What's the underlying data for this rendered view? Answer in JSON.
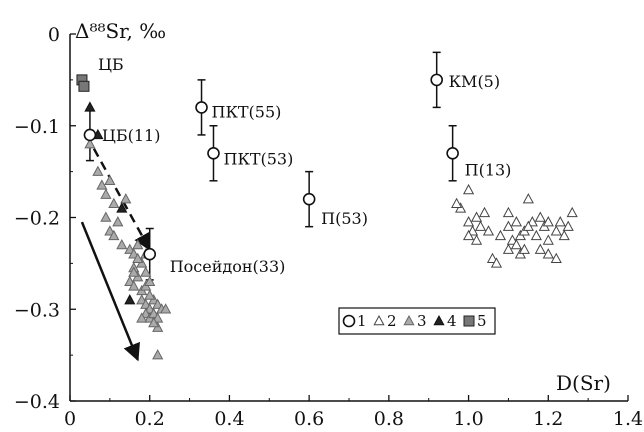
{
  "chart_data": {
    "type": "scatter",
    "ylabel": "Δ⁸⁸Sr, ‰",
    "xlabel": "D(Sr)",
    "xlim": [
      0,
      1.4
    ],
    "ylim": [
      -0.4,
      0
    ],
    "xticks": [
      0,
      0.2,
      0.4,
      0.6,
      0.8,
      1.0,
      1.2,
      1.4
    ],
    "xtick_labels": [
      "0",
      "0.2",
      "0.4",
      "0.6",
      "0.8",
      "1.0",
      "1.2",
      "1.4"
    ],
    "yticks": [
      0,
      -0.1,
      -0.2,
      -0.3,
      -0.4
    ],
    "ytick_labels": [
      "0",
      "−0.1",
      "−0.2",
      "−0.3",
      "−0.4"
    ],
    "grid": false,
    "legend": {
      "placement": "lower-center",
      "entries": [
        "1",
        "2",
        "3",
        "4",
        "5"
      ]
    },
    "series": [
      {
        "name": "1",
        "marker": "open-circle",
        "points": [
          {
            "x": 0.05,
            "y": -0.11,
            "err": 0.028,
            "label": "ЦБ(11)"
          },
          {
            "x": 0.2,
            "y": -0.24,
            "err": 0.028,
            "label": "Посейдон(33)"
          },
          {
            "x": 0.33,
            "y": -0.08,
            "err": 0.03,
            "label": "ПКТ(55)"
          },
          {
            "x": 0.36,
            "y": -0.13,
            "err": 0.03,
            "label": "ПКТ(53)"
          },
          {
            "x": 0.6,
            "y": -0.18,
            "err": 0.03,
            "label": "П(53)"
          },
          {
            "x": 0.92,
            "y": -0.05,
            "err": 0.03,
            "label": "КМ(5)"
          },
          {
            "x": 0.96,
            "y": -0.13,
            "err": 0.03,
            "label": "П(13)"
          }
        ]
      },
      {
        "name": "2",
        "marker": "open-triangle",
        "points": [
          [
            1.0,
            -0.17
          ],
          [
            0.98,
            -0.19
          ],
          [
            0.97,
            -0.185
          ],
          [
            1.02,
            -0.2
          ],
          [
            1.04,
            -0.195
          ],
          [
            1.0,
            -0.205
          ],
          [
            1.03,
            -0.21
          ],
          [
            1.01,
            -0.215
          ],
          [
            1.02,
            -0.225
          ],
          [
            1.05,
            -0.215
          ],
          [
            1.0,
            -0.22
          ],
          [
            1.06,
            -0.245
          ],
          [
            1.07,
            -0.25
          ],
          [
            1.1,
            -0.195
          ],
          [
            1.12,
            -0.205
          ],
          [
            1.1,
            -0.21
          ],
          [
            1.13,
            -0.22
          ],
          [
            1.11,
            -0.225
          ],
          [
            1.14,
            -0.215
          ],
          [
            1.16,
            -0.205
          ],
          [
            1.18,
            -0.2
          ],
          [
            1.1,
            -0.235
          ],
          [
            1.13,
            -0.24
          ],
          [
            1.15,
            -0.21
          ],
          [
            1.15,
            -0.18
          ],
          [
            1.17,
            -0.22
          ],
          [
            1.19,
            -0.21
          ],
          [
            1.2,
            -0.205
          ],
          [
            1.2,
            -0.225
          ],
          [
            1.22,
            -0.215
          ],
          [
            1.24,
            -0.22
          ],
          [
            1.2,
            -0.24
          ],
          [
            1.22,
            -0.245
          ],
          [
            1.26,
            -0.195
          ],
          [
            1.25,
            -0.21
          ],
          [
            1.12,
            -0.23
          ],
          [
            1.18,
            -0.235
          ],
          [
            1.08,
            -0.22
          ],
          [
            1.14,
            -0.235
          ],
          [
            1.23,
            -0.205
          ]
        ]
      },
      {
        "name": "3",
        "marker": "gray-triangle",
        "points": [
          [
            0.05,
            -0.12
          ],
          [
            0.07,
            -0.15
          ],
          [
            0.08,
            -0.165
          ],
          [
            0.09,
            -0.175
          ],
          [
            0.1,
            -0.16
          ],
          [
            0.11,
            -0.185
          ],
          [
            0.09,
            -0.2
          ],
          [
            0.1,
            -0.215
          ],
          [
            0.12,
            -0.205
          ],
          [
            0.11,
            -0.22
          ],
          [
            0.13,
            -0.23
          ],
          [
            0.14,
            -0.18
          ],
          [
            0.15,
            -0.235
          ],
          [
            0.16,
            -0.24
          ],
          [
            0.17,
            -0.23
          ],
          [
            0.16,
            -0.255
          ],
          [
            0.18,
            -0.25
          ],
          [
            0.17,
            -0.265
          ],
          [
            0.19,
            -0.26
          ],
          [
            0.15,
            -0.27
          ],
          [
            0.16,
            -0.275
          ],
          [
            0.18,
            -0.28
          ],
          [
            0.19,
            -0.275
          ],
          [
            0.2,
            -0.27
          ],
          [
            0.18,
            -0.29
          ],
          [
            0.19,
            -0.295
          ],
          [
            0.2,
            -0.3
          ],
          [
            0.21,
            -0.29
          ],
          [
            0.22,
            -0.295
          ],
          [
            0.23,
            -0.3
          ],
          [
            0.19,
            -0.305
          ],
          [
            0.2,
            -0.31
          ],
          [
            0.21,
            -0.305
          ],
          [
            0.22,
            -0.31
          ],
          [
            0.24,
            -0.3
          ],
          [
            0.17,
            -0.245
          ],
          [
            0.2,
            -0.285
          ],
          [
            0.22,
            -0.32
          ],
          [
            0.21,
            -0.315
          ],
          [
            0.18,
            -0.31
          ],
          [
            0.16,
            -0.26
          ],
          [
            0.19,
            -0.24
          ],
          [
            0.22,
            -0.35
          ]
        ]
      },
      {
        "name": "4",
        "marker": "black-triangle",
        "points": [
          [
            0.05,
            -0.08
          ],
          [
            0.07,
            -0.11
          ],
          [
            0.13,
            -0.19
          ],
          [
            0.15,
            -0.29
          ]
        ]
      },
      {
        "name": "5",
        "marker": "gray-square",
        "points": [
          {
            "x": 0.03,
            "y": -0.05,
            "label": "ЦБ"
          },
          {
            "x": 0.035,
            "y": -0.057
          }
        ]
      }
    ],
    "arrows": [
      {
        "from": [
          0.06,
          -0.125
        ],
        "to": [
          0.2,
          -0.235
        ],
        "style": "dashed"
      },
      {
        "from": [
          0.03,
          -0.205
        ],
        "to": [
          0.17,
          -0.355
        ],
        "style": "solid"
      }
    ]
  }
}
